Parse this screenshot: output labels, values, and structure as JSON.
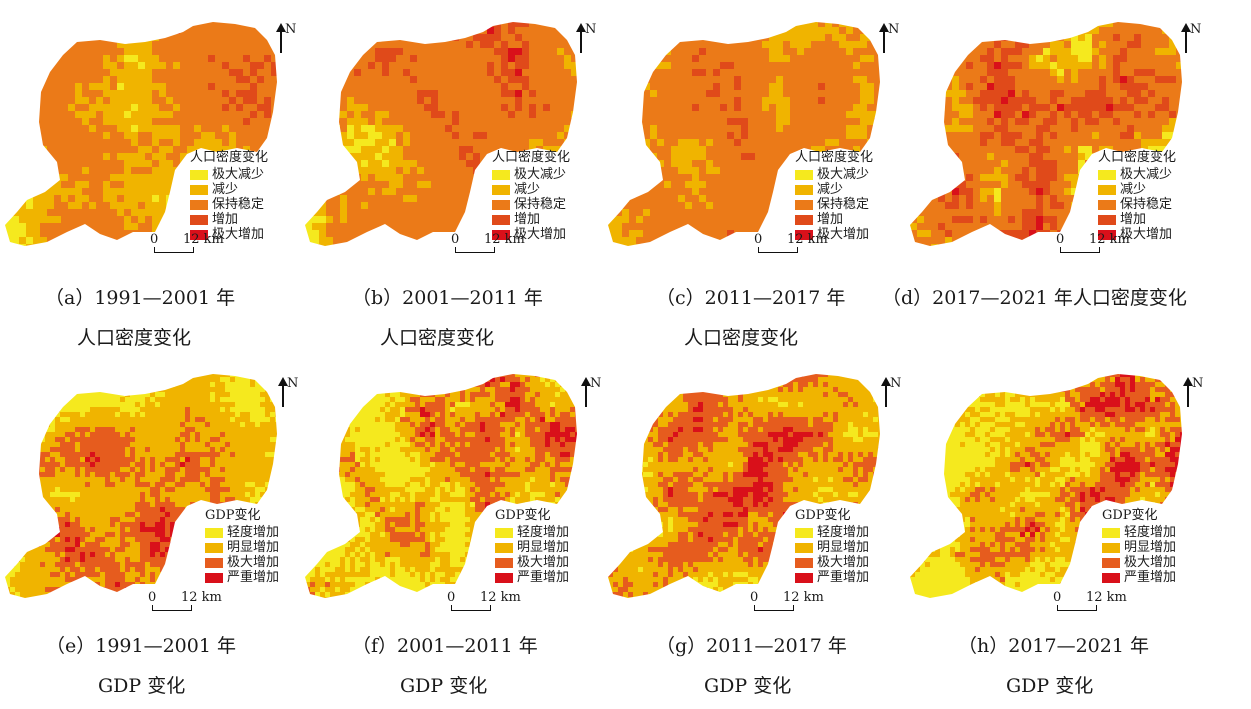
{
  "north_label": "N",
  "colors": {
    "pop": [
      "#f5e91e",
      "#f0b400",
      "#eb7a18",
      "#e04a1a",
      "#d9101a"
    ],
    "gdp": [
      "#f5e91e",
      "#f0b400",
      "#e65c1e",
      "#d9101a"
    ]
  },
  "panels": [
    {
      "id": "a",
      "legend_type": "pop",
      "legend_title": "人口密度变化",
      "legend_items": [
        "极大减少",
        "减少",
        "保持稳定",
        "增加",
        "极大增加"
      ],
      "scale_zero": "0",
      "scale_dist": "12 km",
      "caption_line1": "（a）1991—2001 年",
      "caption_line2": "人口密度变化"
    },
    {
      "id": "b",
      "legend_type": "pop",
      "legend_title": "人口密度变化",
      "legend_items": [
        "极大减少",
        "减少",
        "保持稳定",
        "增加",
        "极大增加"
      ],
      "scale_zero": "0",
      "scale_dist": "12 km",
      "caption_line1": "（b）2001—2011 年",
      "caption_line2": "人口密度变化"
    },
    {
      "id": "c",
      "legend_type": "pop",
      "legend_title": "人口密度变化",
      "legend_items": [
        "极大减少",
        "减少",
        "保持稳定",
        "增加",
        "极大增加"
      ],
      "scale_zero": "0",
      "scale_dist": "12 km",
      "caption_line1": "（c）2011—2017 年",
      "caption_line2": "人口密度变化"
    },
    {
      "id": "d",
      "legend_type": "pop",
      "legend_title": "人口密度变化",
      "legend_items": [
        "极大减少",
        "减少",
        "保持稳定",
        "增加",
        "极大增加"
      ],
      "scale_zero": "0",
      "scale_dist": "12 km",
      "caption_line1": "（d）2017—2021 年人口密度变化",
      "caption_line2": ""
    },
    {
      "id": "e",
      "legend_type": "gdp",
      "legend_title": "GDP变化",
      "legend_items": [
        "轻度增加",
        "明显增加",
        "极大增加",
        "严重增加"
      ],
      "scale_zero": "0",
      "scale_dist": "12 km",
      "caption_line1": "（e）1991—2001 年",
      "caption_line2": "GDP 变化"
    },
    {
      "id": "f",
      "legend_type": "gdp",
      "legend_title": "GDP变化",
      "legend_items": [
        "轻度增加",
        "明显增加",
        "极大增加",
        "严重增加"
      ],
      "scale_zero": "0",
      "scale_dist": "12 km",
      "caption_line1": "（f）2001—2011 年",
      "caption_line2": "GDP 变化"
    },
    {
      "id": "g",
      "legend_type": "gdp",
      "legend_title": "GDP变化",
      "legend_items": [
        "轻度增加",
        "明显增加",
        "极大增加",
        "严重增加"
      ],
      "scale_zero": "0",
      "scale_dist": "12 km",
      "caption_line1": "（g）2011—2017 年",
      "caption_line2": "GDP 变化"
    },
    {
      "id": "h",
      "legend_type": "gdp",
      "legend_title": "GDP变化",
      "legend_items": [
        "轻度增加",
        "明显增加",
        "极大增加",
        "严重增加"
      ],
      "scale_zero": "0",
      "scale_dist": "12 km",
      "caption_line1": "（h）2017—2021 年",
      "caption_line2": "GDP 变化"
    }
  ]
}
